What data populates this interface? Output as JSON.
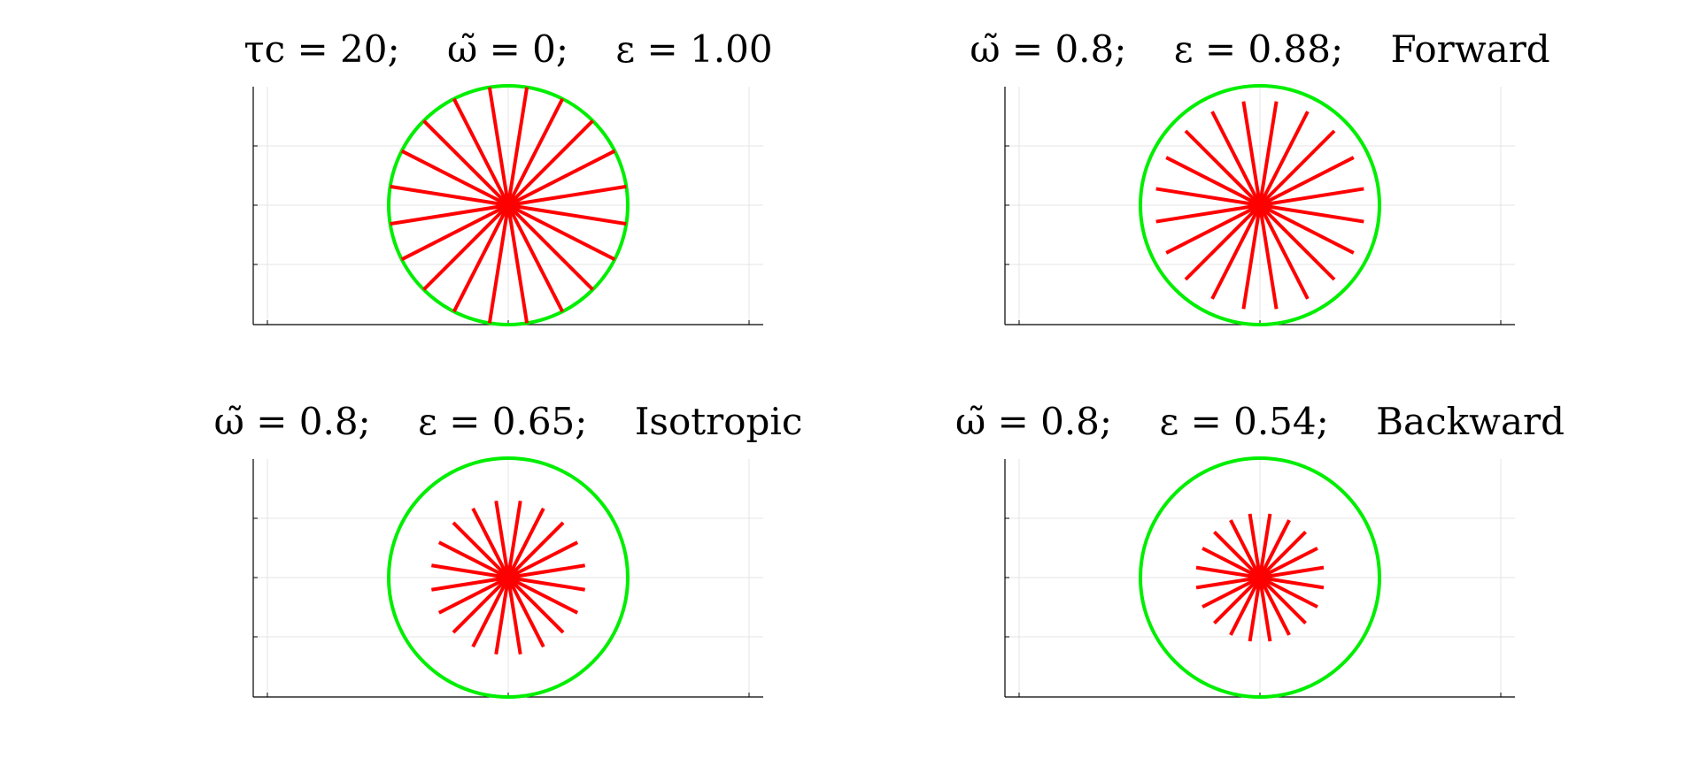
{
  "chart_data": [
    {
      "type": "spokes",
      "title": "τc = 20;    ω̃ = 0;    ε = 1.00",
      "value": 1.0,
      "spokes": 20,
      "color": "#ff0000",
      "circle_color": "#00ee00"
    },
    {
      "type": "spokes",
      "title": "ω̃ = 0.8;    ε = 0.88;    Forward",
      "value": 0.88,
      "spokes": 20,
      "color": "#ff0000",
      "circle_color": "#00ee00"
    },
    {
      "type": "spokes",
      "title": "ω̃ = 0.8;    ε = 0.65;    Isotropic",
      "value": 0.65,
      "spokes": 20,
      "color": "#ff0000",
      "circle_color": "#00ee00"
    },
    {
      "type": "spokes",
      "title": "ω̃ = 0.8;    ε = 0.54;    Backward",
      "value": 0.54,
      "spokes": 20,
      "color": "#ff0000",
      "circle_color": "#00ee00"
    }
  ]
}
